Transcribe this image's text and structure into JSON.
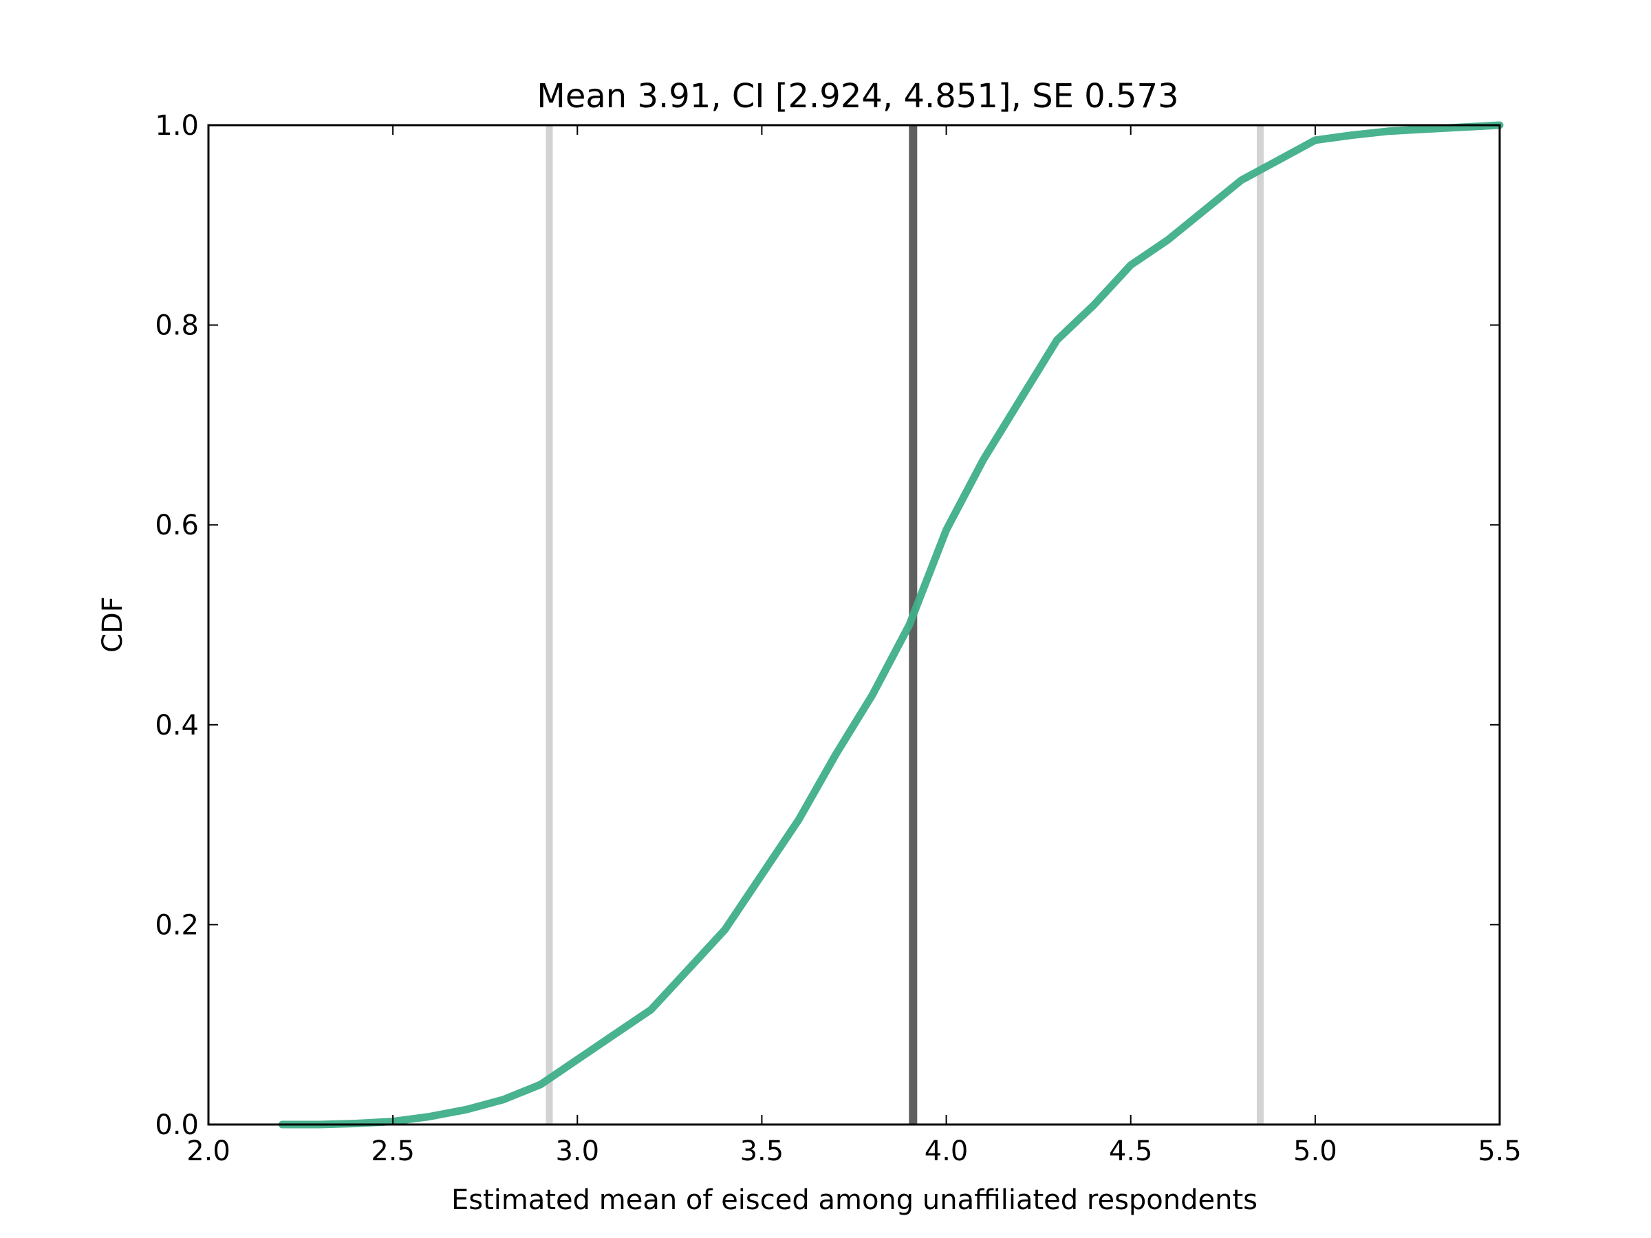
{
  "chart_data": {
    "type": "line",
    "title": "Mean 3.91, CI [2.924, 4.851], SE 0.573",
    "xlabel": "Estimated mean of eisced among unaffiliated respondents",
    "ylabel": "CDF",
    "xlim": [
      2.0,
      5.5
    ],
    "ylim": [
      0.0,
      1.0
    ],
    "x_ticks": [
      "2.0",
      "2.5",
      "3.0",
      "3.5",
      "4.0",
      "4.5",
      "5.0",
      "5.5"
    ],
    "y_ticks": [
      "0.0",
      "0.2",
      "0.4",
      "0.6",
      "0.8",
      "1.0"
    ],
    "grid": false,
    "colors": {
      "cdf_line": "#3fae89",
      "mean_line": "#5f5f5f",
      "ci_lines": "#d3d3d3",
      "axes": "#000000"
    },
    "reference_lines": [
      {
        "x": 2.924,
        "role": "ci_lower"
      },
      {
        "x": 3.91,
        "role": "mean"
      },
      {
        "x": 4.851,
        "role": "ci_upper"
      }
    ],
    "series": [
      {
        "x": [
          2.2,
          2.3,
          2.4,
          2.5,
          2.6,
          2.7,
          2.8,
          2.9,
          3.0,
          3.1,
          3.2,
          3.3,
          3.4,
          3.5,
          3.6,
          3.7,
          3.8,
          3.9,
          4.0,
          4.1,
          4.2,
          4.3,
          4.4,
          4.5,
          4.6,
          4.7,
          4.8,
          4.9,
          5.0,
          5.1,
          5.2,
          5.3,
          5.4,
          5.5
        ],
        "y": [
          0.0,
          0.0,
          0.001,
          0.003,
          0.008,
          0.015,
          0.025,
          0.04,
          0.065,
          0.09,
          0.115,
          0.155,
          0.195,
          0.25,
          0.305,
          0.37,
          0.43,
          0.5,
          0.595,
          0.665,
          0.725,
          0.785,
          0.82,
          0.86,
          0.885,
          0.915,
          0.945,
          0.965,
          0.985,
          0.99,
          0.994,
          0.996,
          0.998,
          1.0
        ]
      }
    ]
  }
}
